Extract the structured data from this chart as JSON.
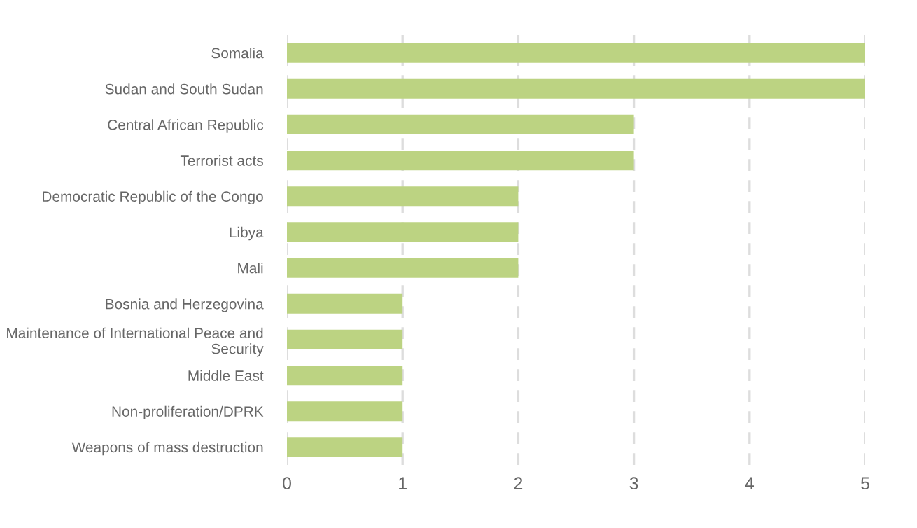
{
  "chart_data": {
    "type": "bar",
    "orientation": "horizontal",
    "categories": [
      "Somalia",
      "Sudan and South Sudan",
      "Central African Republic",
      "Terrorist acts",
      "Democratic Republic of the Congo",
      "Libya",
      "Mali",
      "Bosnia and Herzegovina",
      "Maintenance of International Peace and\nSecurity",
      "Middle East",
      "Non-proliferation/DPRK",
      "Weapons of mass destruction"
    ],
    "values": [
      5,
      5,
      3,
      3,
      2,
      2,
      2,
      1,
      1,
      1,
      1,
      1
    ],
    "color": "#bcd382",
    "xlim": [
      0,
      5
    ],
    "xticks": [
      0,
      1,
      2,
      3,
      4,
      5
    ],
    "grid": "x"
  }
}
